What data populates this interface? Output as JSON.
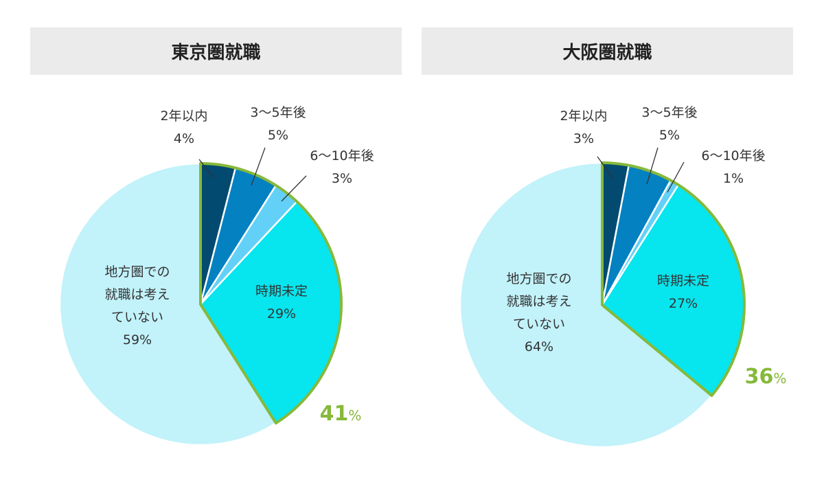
{
  "chart_data": [
    {
      "type": "pie",
      "title": "東京圏就職",
      "slices": [
        {
          "label": [
            "2年以内"
          ],
          "value": 4,
          "value_label": "4%",
          "color": "#034a70"
        },
        {
          "label": [
            "3〜5年後"
          ],
          "value": 5,
          "value_label": "5%",
          "color": "#0481c1"
        },
        {
          "label": [
            "6〜10年後"
          ],
          "value": 3,
          "value_label": "3%",
          "color": "#63d1f7"
        },
        {
          "label": [
            "時期未定"
          ],
          "value": 29,
          "value_label": "29%",
          "color": "#07e5ee"
        },
        {
          "label": [
            "地方圏での",
            "就職は考え",
            "ていない"
          ],
          "value": 59,
          "value_label": "59%",
          "color": "#c2f2fa"
        }
      ],
      "highlight_total": {
        "value": "41",
        "unit": "%",
        "color": "#86b93a"
      }
    },
    {
      "type": "pie",
      "title": "大阪圏就職",
      "slices": [
        {
          "label": [
            "2年以内"
          ],
          "value": 3,
          "value_label": "3%",
          "color": "#034a70"
        },
        {
          "label": [
            "3〜5年後"
          ],
          "value": 5,
          "value_label": "5%",
          "color": "#0481c1"
        },
        {
          "label": [
            "6〜10年後"
          ],
          "value": 1,
          "value_label": "1%",
          "color": "#63d1f7"
        },
        {
          "label": [
            "時期未定"
          ],
          "value": 27,
          "value_label": "27%",
          "color": "#07e5ee"
        },
        {
          "label": [
            "地方圏での",
            "就職は考え",
            "ていない"
          ],
          "value": 64,
          "value_label": "64%",
          "color": "#c2f2fa"
        }
      ],
      "highlight_total": {
        "value": "36",
        "unit": "%",
        "color": "#86b93a"
      }
    }
  ]
}
